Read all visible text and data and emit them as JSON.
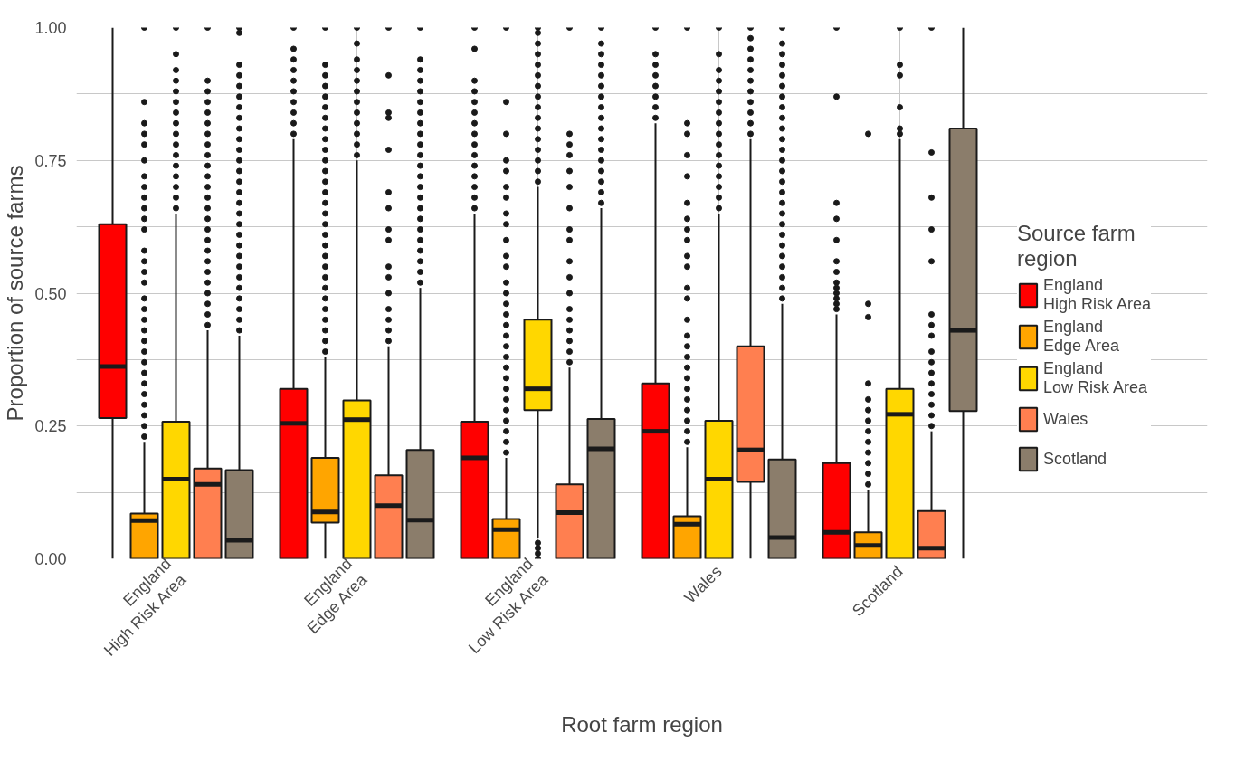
{
  "chart_data": {
    "type": "box",
    "xlabel": "Root farm region",
    "ylabel": "Proportion of source farms",
    "legend_title": "Source farm\nregion",
    "legend": "right",
    "grid": true,
    "categories": [
      "England\nHigh Risk Area",
      "England\nEdge Area",
      "England\nLow Risk Area",
      "Wales",
      "Scotland"
    ],
    "ylim": [
      0,
      1
    ],
    "yticks": [
      {
        "value": 0,
        "label": "0.00"
      },
      {
        "value": 0.25,
        "label": "0.25"
      },
      {
        "value": 0.5,
        "label": "0.50"
      },
      {
        "value": 0.75,
        "label": "0.75"
      },
      {
        "value": 1,
        "label": "1.00"
      }
    ],
    "series": [
      {
        "name": "England\nHigh Risk Area",
        "color": "#ff0000",
        "boxes": [
          {
            "low": 0,
            "q1": 0.265,
            "median": 0.362,
            "q3": 0.63,
            "high": 1.0
          },
          {
            "low": 0,
            "q1": 0,
            "median": 0.255,
            "q3": 0.32,
            "high": 0.79,
            "outliers": [
              0.8,
              0.82,
              0.84,
              0.86,
              0.88,
              0.9,
              0.92,
              0.94,
              0.96,
              1.0
            ]
          },
          {
            "low": 0,
            "q1": 0,
            "median": 0.19,
            "q3": 0.258,
            "high": 0.65,
            "outliers": [
              0.66,
              0.68,
              0.7,
              0.72,
              0.74,
              0.76,
              0.78,
              0.8,
              0.82,
              0.84,
              0.86,
              0.88,
              0.9,
              0.96,
              1.0
            ]
          },
          {
            "low": 0,
            "q1": 0,
            "median": 0.24,
            "q3": 0.33,
            "high": 0.82,
            "outliers": [
              0.83,
              0.85,
              0.87,
              0.89,
              0.91,
              0.93,
              0.95,
              1.0
            ]
          },
          {
            "low": 0,
            "q1": 0,
            "median": 0.05,
            "q3": 0.18,
            "high": 0.46,
            "outliers": [
              0.47,
              0.48,
              0.49,
              0.5,
              0.51,
              0.52,
              0.54,
              0.56,
              0.6,
              0.64,
              0.67,
              0.87,
              1.0
            ]
          }
        ]
      },
      {
        "name": "England\nEdge Area",
        "color": "#ffa500",
        "boxes": [
          {
            "low": 0,
            "q1": 0,
            "median": 0.072,
            "q3": 0.085,
            "high": 0.22,
            "outliers": [
              0.23,
              0.25,
              0.27,
              0.29,
              0.31,
              0.33,
              0.35,
              0.37,
              0.39,
              0.41,
              0.43,
              0.45,
              0.47,
              0.49,
              0.52,
              0.54,
              0.56,
              0.58,
              0.62,
              0.64,
              0.66,
              0.68,
              0.7,
              0.72,
              0.75,
              0.78,
              0.8,
              0.82,
              0.86,
              1.0
            ]
          },
          {
            "low": 0,
            "q1": 0.068,
            "median": 0.088,
            "q3": 0.19,
            "high": 0.38,
            "outliers": [
              0.39,
              0.41,
              0.43,
              0.45,
              0.47,
              0.49,
              0.51,
              0.53,
              0.55,
              0.57,
              0.59,
              0.61,
              0.63,
              0.65,
              0.67,
              0.69,
              0.71,
              0.73,
              0.75,
              0.77,
              0.79,
              0.81,
              0.83,
              0.85,
              0.87,
              0.89,
              0.91,
              0.93,
              1.0
            ]
          },
          {
            "low": 0,
            "q1": 0,
            "median": 0.055,
            "q3": 0.075,
            "high": 0.19,
            "outliers": [
              0.2,
              0.22,
              0.24,
              0.26,
              0.28,
              0.3,
              0.32,
              0.34,
              0.36,
              0.38,
              0.4,
              0.42,
              0.44,
              0.46,
              0.48,
              0.5,
              0.52,
              0.55,
              0.57,
              0.6,
              0.63,
              0.65,
              0.68,
              0.7,
              0.73,
              0.75,
              0.8,
              0.86,
              1.0
            ]
          },
          {
            "low": 0,
            "q1": 0,
            "median": 0.065,
            "q3": 0.08,
            "high": 0.21,
            "outliers": [
              0.22,
              0.24,
              0.26,
              0.28,
              0.3,
              0.32,
              0.34,
              0.36,
              0.38,
              0.4,
              0.42,
              0.45,
              0.49,
              0.51,
              0.55,
              0.57,
              0.6,
              0.62,
              0.64,
              0.67,
              0.72,
              0.76,
              0.8,
              0.82,
              1.0
            ]
          },
          {
            "low": 0,
            "q1": 0,
            "median": 0.025,
            "q3": 0.05,
            "high": 0.13,
            "outliers": [
              0.14,
              0.16,
              0.18,
              0.2,
              0.22,
              0.24,
              0.26,
              0.28,
              0.3,
              0.33,
              0.455,
              0.48,
              0.8
            ]
          }
        ]
      },
      {
        "name": "England\nLow Risk Area",
        "color": "#ffd700",
        "boxes": [
          {
            "low": 0,
            "q1": 0,
            "median": 0.15,
            "q3": 0.258,
            "high": 0.65,
            "outliers": [
              0.66,
              0.68,
              0.7,
              0.72,
              0.74,
              0.76,
              0.78,
              0.8,
              0.82,
              0.84,
              0.86,
              0.88,
              0.9,
              0.92,
              0.95,
              1.0
            ]
          },
          {
            "low": 0,
            "q1": 0,
            "median": 0.262,
            "q3": 0.298,
            "high": 0.75,
            "outliers": [
              0.76,
              0.78,
              0.8,
              0.82,
              0.84,
              0.86,
              0.88,
              0.9,
              0.92,
              0.94,
              0.97,
              1.0
            ]
          },
          {
            "low": 0.04,
            "q1": 0.28,
            "median": 0.32,
            "q3": 0.45,
            "high": 0.7,
            "outliers": [
              0,
              0.01,
              0.02,
              0.03,
              0.71,
              0.73,
              0.75,
              0.77,
              0.79,
              0.81,
              0.83,
              0.85,
              0.87,
              0.89,
              0.91,
              0.93,
              0.95,
              0.97,
              0.99,
              1.0
            ]
          },
          {
            "low": 0,
            "q1": 0,
            "median": 0.15,
            "q3": 0.26,
            "high": 0.65,
            "outliers": [
              0.66,
              0.68,
              0.7,
              0.72,
              0.74,
              0.76,
              0.78,
              0.8,
              0.82,
              0.84,
              0.86,
              0.88,
              0.9,
              0.92,
              0.95,
              1.0
            ]
          },
          {
            "low": 0,
            "q1": 0,
            "median": 0.272,
            "q3": 0.32,
            "high": 0.79,
            "outliers": [
              0.8,
              0.81,
              0.85,
              0.91,
              0.93,
              1.0
            ]
          }
        ]
      },
      {
        "name": "Wales",
        "color": "#ff7f50",
        "boxes": [
          {
            "low": 0,
            "q1": 0,
            "median": 0.14,
            "q3": 0.17,
            "high": 0.43,
            "outliers": [
              0.44,
              0.46,
              0.48,
              0.5,
              0.52,
              0.54,
              0.56,
              0.58,
              0.6,
              0.62,
              0.64,
              0.66,
              0.68,
              0.7,
              0.72,
              0.74,
              0.76,
              0.78,
              0.8,
              0.82,
              0.84,
              0.86,
              0.88,
              0.9,
              1.0
            ]
          },
          {
            "low": 0,
            "q1": 0,
            "median": 0.1,
            "q3": 0.157,
            "high": 0.4,
            "outliers": [
              0.41,
              0.43,
              0.45,
              0.47,
              0.5,
              0.53,
              0.55,
              0.6,
              0.62,
              0.66,
              0.69,
              0.77,
              0.83,
              0.84,
              0.91,
              1.0
            ]
          },
          {
            "low": 0,
            "q1": 0,
            "median": 0.087,
            "q3": 0.14,
            "high": 0.36,
            "outliers": [
              0.37,
              0.39,
              0.41,
              0.43,
              0.45,
              0.47,
              0.5,
              0.53,
              0.56,
              0.6,
              0.62,
              0.66,
              0.7,
              0.73,
              0.76,
              0.78,
              0.8,
              1.0
            ]
          },
          {
            "low": 0,
            "q1": 0.145,
            "median": 0.205,
            "q3": 0.4,
            "high": 0.79,
            "outliers": [
              0.8,
              0.82,
              0.84,
              0.86,
              0.88,
              0.9,
              0.92,
              0.94,
              0.96,
              0.98,
              1.0
            ]
          },
          {
            "low": 0,
            "q1": 0,
            "median": 0.02,
            "q3": 0.09,
            "high": 0.24,
            "outliers": [
              0.25,
              0.27,
              0.29,
              0.31,
              0.33,
              0.35,
              0.37,
              0.39,
              0.42,
              0.44,
              0.46,
              0.56,
              0.62,
              0.68,
              0.765,
              1.0
            ]
          }
        ]
      },
      {
        "name": "Scotland",
        "color": "#8b7d6b",
        "boxes": [
          {
            "low": 0,
            "q1": 0,
            "median": 0.035,
            "q3": 0.167,
            "high": 0.42,
            "outliers": [
              0.43,
              0.45,
              0.47,
              0.49,
              0.51,
              0.53,
              0.55,
              0.57,
              0.59,
              0.61,
              0.63,
              0.65,
              0.67,
              0.69,
              0.71,
              0.73,
              0.75,
              0.77,
              0.79,
              0.81,
              0.83,
              0.85,
              0.87,
              0.89,
              0.91,
              0.93,
              0.99,
              1.0
            ]
          },
          {
            "low": 0,
            "q1": 0,
            "median": 0.073,
            "q3": 0.205,
            "high": 0.51,
            "outliers": [
              0.52,
              0.54,
              0.56,
              0.58,
              0.6,
              0.62,
              0.64,
              0.66,
              0.68,
              0.7,
              0.72,
              0.74,
              0.76,
              0.78,
              0.8,
              0.82,
              0.84,
              0.86,
              0.88,
              0.9,
              0.92,
              0.94,
              1.0
            ]
          },
          {
            "low": 0,
            "q1": 0,
            "median": 0.207,
            "q3": 0.263,
            "high": 0.66,
            "outliers": [
              0.67,
              0.69,
              0.71,
              0.73,
              0.75,
              0.77,
              0.79,
              0.81,
              0.83,
              0.85,
              0.87,
              0.89,
              0.91,
              0.93,
              0.95,
              0.97,
              1.0
            ]
          },
          {
            "low": 0,
            "q1": 0,
            "median": 0.04,
            "q3": 0.187,
            "high": 0.48,
            "outliers": [
              0.49,
              0.51,
              0.53,
              0.55,
              0.57,
              0.59,
              0.61,
              0.63,
              0.65,
              0.67,
              0.69,
              0.71,
              0.73,
              0.75,
              0.77,
              0.79,
              0.81,
              0.83,
              0.85,
              0.87,
              0.89,
              0.91,
              0.93,
              0.95,
              0.97,
              1.0
            ]
          },
          {
            "low": 0,
            "q1": 0.278,
            "median": 0.43,
            "q3": 0.81,
            "high": 1.0
          }
        ]
      }
    ]
  }
}
